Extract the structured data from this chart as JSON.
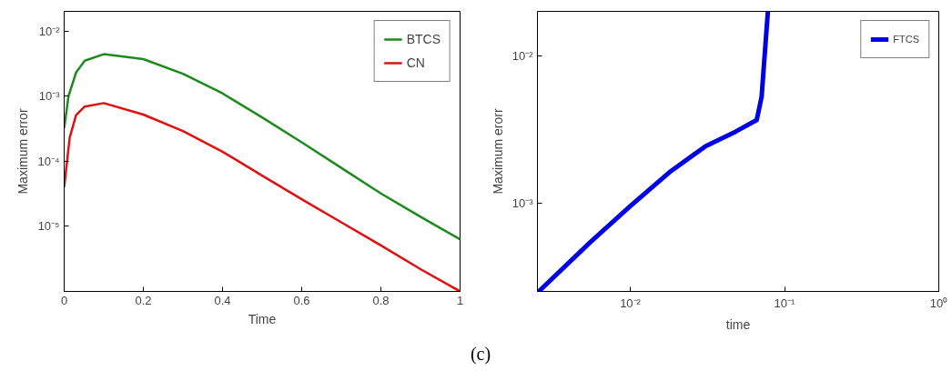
{
  "chart_data": [
    {
      "type": "line",
      "xlabel": "Time",
      "ylabel": "Maximum error",
      "log": "y",
      "grid": false,
      "legend": "top right",
      "x": [
        0,
        0.011,
        0.03,
        0.052,
        0.1,
        0.2,
        0.3,
        0.4,
        0.5,
        0.6,
        0.7,
        0.8,
        0.9,
        1
      ],
      "xlim": [
        0,
        1
      ],
      "xticks": [
        0,
        0.2,
        0.4,
        0.6,
        0.8,
        1
      ],
      "ylim": [
        1e-06,
        0.02
      ],
      "yticks": [
        {
          "value": 0.01,
          "label": "10⁻²"
        },
        {
          "value": 0.001,
          "label": "10⁻³"
        },
        {
          "value": 0.0001,
          "label": "10⁻⁴"
        },
        {
          "value": 1e-05,
          "label": "10⁻⁵"
        }
      ],
      "series": [
        {
          "name": "BTCS",
          "color": "#1e8a1e",
          "values": [
            0.00032,
            0.001,
            0.0023,
            0.0035,
            0.0044,
            0.0037,
            0.0022,
            0.0011,
            0.00047,
            0.000195,
            7.9e-05,
            3.2e-05,
            1.4e-05,
            6.3e-06
          ]
        },
        {
          "name": "CN",
          "color": "#e01010",
          "x": [
            0,
            0.014,
            0.03,
            0.052,
            0.1,
            0.2,
            0.3,
            0.4,
            0.5,
            0.6,
            0.7,
            0.8,
            0.9,
            1
          ],
          "values": [
            4e-05,
            0.00023,
            0.00051,
            0.00069,
            0.00078,
            0.00052,
            0.00029,
            0.00014,
            6e-05,
            2.6e-05,
            1.15e-05,
            5.1e-06,
            2.2e-06,
            1e-06
          ]
        }
      ],
      "annotations": [
        "(c)"
      ]
    },
    {
      "type": "line",
      "xlabel": "time",
      "ylabel": "Maximum erorr",
      "log": "xy",
      "grid": false,
      "legend": "top right",
      "x": [
        0.00255,
        0.0055,
        0.01,
        0.0179,
        0.0308,
        0.048,
        0.066,
        0.071,
        0.074,
        0.078
      ],
      "xlim": [
        0.0025,
        1
      ],
      "xticks": [
        {
          "value": 0.01,
          "label": "10⁻²"
        },
        {
          "value": 0.1,
          "label": "10⁻¹"
        },
        {
          "value": 1,
          "label": "10⁰"
        }
      ],
      "ylim": [
        0.00025,
        0.02
      ],
      "yticks": [
        {
          "value": 0.01,
          "label": "10⁻²"
        },
        {
          "value": 0.001,
          "label": "10⁻³"
        }
      ],
      "series": [
        {
          "name": "FTCS",
          "color": "#0000e6",
          "values": [
            0.00025,
            0.00054,
            0.00095,
            0.00161,
            0.00243,
            0.00304,
            0.00365,
            0.00525,
            0.0095,
            0.02
          ]
        }
      ]
    }
  ]
}
